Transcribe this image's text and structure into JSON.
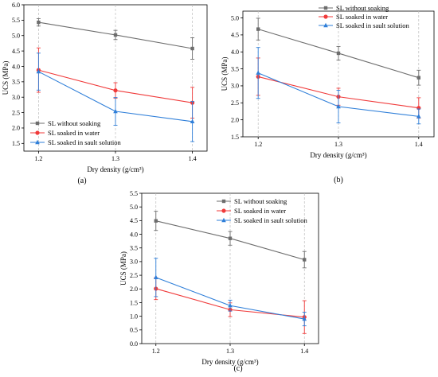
{
  "colors": {
    "gray": "#6d6d6d",
    "red": "#f03a3a",
    "blue": "#2f7fd9",
    "grid": "#bdbdbd",
    "axis": "#000000"
  },
  "chart_data": [
    {
      "type": "line",
      "panel_label": "(a)",
      "xlabel": "Dry density (g/cm³)",
      "ylabel": "UCS (MPa)",
      "categories": [
        "1.2",
        "1.3",
        "1.4"
      ],
      "ylim": [
        1.25,
        6.0
      ],
      "yticks": [
        "1.5",
        "2.0",
        "2.5",
        "3.0",
        "3.5",
        "4.0",
        "4.5",
        "5.0",
        "5.5",
        "6.0"
      ],
      "legend_position": "bottom-left",
      "grid": "vertical dashed",
      "series": [
        {
          "name": "SL without soaking",
          "color": "#6d6d6d",
          "marker": "square",
          "values": [
            5.43,
            5.02,
            4.58
          ],
          "err": [
            0.12,
            0.15,
            0.35
          ]
        },
        {
          "name": "SL soaked in water",
          "color": "#f03a3a",
          "marker": "circle",
          "values": [
            3.88,
            3.22,
            2.82
          ],
          "err": [
            0.72,
            0.25,
            0.5
          ]
        },
        {
          "name": "SL soaked in sault solution",
          "color": "#2f7fd9",
          "marker": "triangle",
          "values": [
            3.83,
            2.54,
            2.21
          ],
          "err": [
            0.6,
            0.45,
            0.65
          ]
        }
      ]
    },
    {
      "type": "line",
      "panel_label": "(b)",
      "xlabel": "Dry density (g/cm³)",
      "ylabel": "UCS (MPa)",
      "categories": [
        "1.2",
        "1.3",
        "1.4"
      ],
      "ylim": [
        1.5,
        5.2
      ],
      "yticks": [
        "1.5",
        "2.0",
        "2.5",
        "3.0",
        "3.5",
        "4.0",
        "4.5",
        "5.0"
      ],
      "legend_position": "top-right",
      "grid": "vertical dashed",
      "series": [
        {
          "name": "SL without soaking",
          "color": "#6d6d6d",
          "marker": "square",
          "values": [
            4.67,
            3.96,
            3.24
          ],
          "err": [
            0.32,
            0.2,
            0.22
          ]
        },
        {
          "name": "SL soaked in water",
          "color": "#f03a3a",
          "marker": "circle",
          "values": [
            3.27,
            2.68,
            2.35
          ],
          "err": [
            0.55,
            0.25,
            0.3
          ]
        },
        {
          "name": "SL soaked in sault solution",
          "color": "#2f7fd9",
          "marker": "triangle",
          "values": [
            3.38,
            2.39,
            2.1
          ],
          "err": [
            0.75,
            0.48,
            0.22
          ]
        }
      ]
    },
    {
      "type": "line",
      "panel_label": "(c)",
      "xlabel": "Dry density (g/cm³)",
      "ylabel": "UCS (MPa)",
      "categories": [
        "1.2",
        "1.3",
        "1.4"
      ],
      "ylim": [
        0.0,
        5.5
      ],
      "yticks": [
        "0.0",
        "0.5",
        "1.0",
        "1.5",
        "2.0",
        "2.5",
        "3.0",
        "3.5",
        "4.0",
        "4.5",
        "5.0",
        "5.5"
      ],
      "legend_position": "top-right",
      "grid": "vertical dashed",
      "series": [
        {
          "name": "SL without soaking",
          "color": "#6d6d6d",
          "marker": "square",
          "values": [
            4.49,
            3.85,
            3.07
          ],
          "err": [
            0.35,
            0.25,
            0.3
          ]
        },
        {
          "name": "SL soaked in water",
          "color": "#f03a3a",
          "marker": "circle",
          "values": [
            2.01,
            1.24,
            0.97
          ],
          "err": [
            0.4,
            0.25,
            0.6
          ]
        },
        {
          "name": "SL soaked in sault solution",
          "color": "#2f7fd9",
          "marker": "triangle",
          "values": [
            2.42,
            1.39,
            0.9
          ],
          "err": [
            0.7,
            0.2,
            0.25
          ]
        }
      ]
    }
  ]
}
